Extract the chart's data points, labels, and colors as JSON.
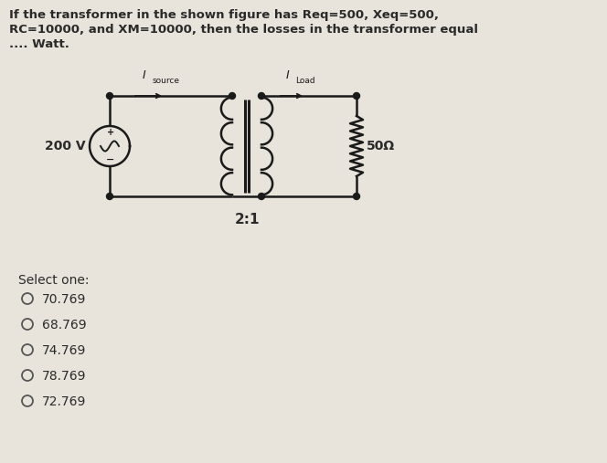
{
  "title_line1": "If the transformer in the shown figure has Req=500, Xeq=500,",
  "title_line2": "RC=10000, and XM=10000, then the losses in the transformer equal",
  "title_line3": ".... Watt.",
  "voltage_label": "200 V",
  "ratio_label": "2:1",
  "load_label": "50Ω",
  "select_one": "Select one:",
  "options": [
    "70.769",
    "68.769",
    "74.769",
    "78.769",
    "72.769"
  ],
  "bg_color": "#e8e4dc",
  "text_color": "#2a2a2a",
  "circuit_color": "#1a1a1a",
  "font_size_title": 9.5,
  "font_size_options": 10,
  "font_size_circuit": 9
}
